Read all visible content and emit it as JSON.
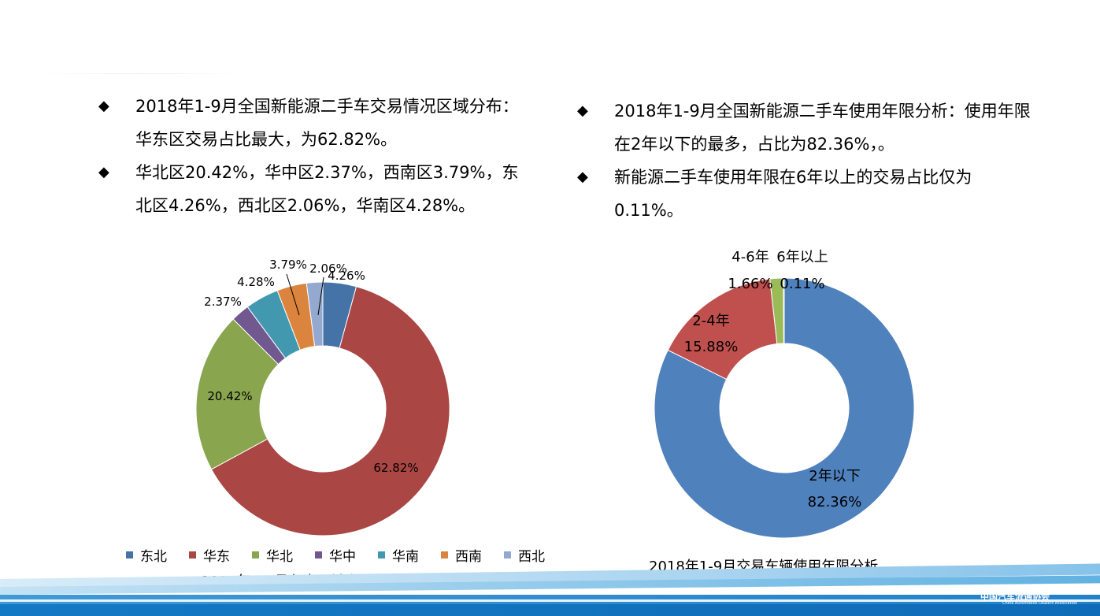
{
  "left_text": {
    "bullets": [
      "2018年1-9月全国新能源二手车交易情况区域分布：华东区交易占比最大，为62.82%。",
      "华北区20.42%，华中区2.37%，西南区3.79%，东北区4.26%，西北区2.06%，华南区4.28%。"
    ]
  },
  "right_text": {
    "bullets": [
      "2018年1-9月全国新能源二手车使用年限分析：使用年限在2年以下的最多，占比为82.36%，。",
      "新能源二手车使用年限在6年以上的交易占比仅为0.11%。"
    ]
  },
  "bullet_icon": "diamond-icon",
  "chart_data": [
    {
      "type": "pie",
      "donut": true,
      "title": "2018年1-9月七大区域交易量占比图",
      "categories": [
        "东北",
        "华东",
        "华北",
        "华中",
        "华南",
        "西南",
        "西北"
      ],
      "values": [
        4.26,
        62.82,
        20.42,
        2.37,
        4.28,
        3.79,
        2.06
      ],
      "labels": [
        "4.26%",
        "62.82%",
        "20.42%",
        "2.37%",
        "4.28%",
        "3.79%",
        "2.06%"
      ],
      "colors": [
        "#4572a7",
        "#aa4643",
        "#89a54e",
        "#71588f",
        "#4198af",
        "#db843d",
        "#93a9cf"
      ],
      "legend_order": [
        "东北",
        "华东",
        "华北",
        "华中",
        "华南",
        "西南",
        "西北"
      ],
      "legend_placement": "bottom"
    },
    {
      "type": "pie",
      "donut": true,
      "title": "2018年1-9月交易车辆使用年限分析",
      "categories": [
        "2年以下",
        "2-4年",
        "4-6年",
        "6年以上"
      ],
      "values": [
        82.36,
        15.88,
        1.66,
        0.11
      ],
      "labels": [
        "82.36%",
        "15.88%",
        "1.66%",
        "0.11%"
      ],
      "colors": [
        "#4f81bd",
        "#c0504d",
        "#9bbb59",
        "#8064a2"
      ]
    }
  ],
  "footer": {
    "logo_cn": "中国汽车流通协会",
    "logo_en": "China Automobile Dealers Association"
  }
}
